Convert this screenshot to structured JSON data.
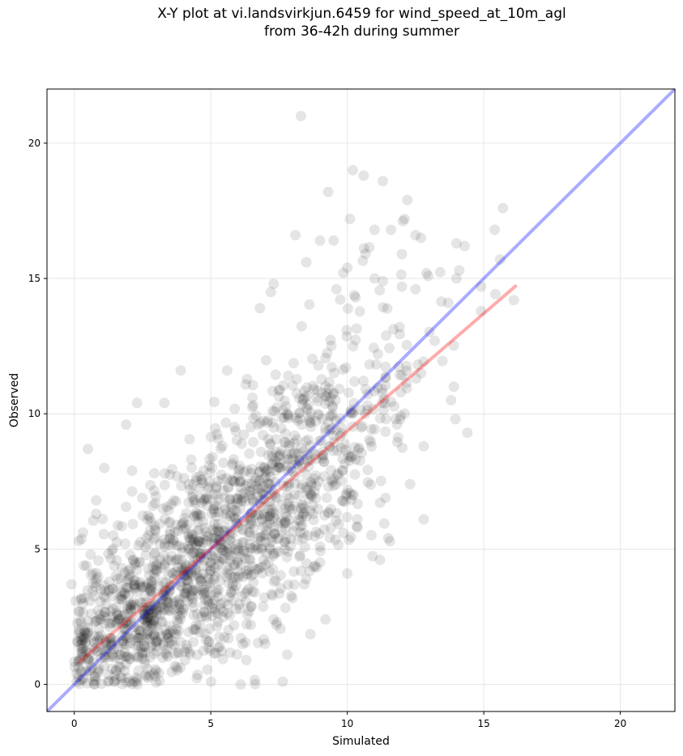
{
  "chart_data": {
    "type": "scatter",
    "title_lines": [
      "X-Y plot at vi.landsvirkjun.6459 for wind_speed_at_10m_agl",
      "from 36-42h during summer"
    ],
    "xlabel": "Simulated",
    "ylabel": "Observed",
    "xlim": [
      -1,
      22
    ],
    "ylim": [
      -1,
      22
    ],
    "xticks": [
      0,
      5,
      10,
      15,
      20
    ],
    "yticks": [
      0,
      5,
      10,
      15,
      20
    ],
    "grid": true,
    "point_color": "#000000",
    "point_alpha": 0.1,
    "identity_line": {
      "color": "#0000ff",
      "from": [
        -1,
        -1
      ],
      "to": [
        22,
        22
      ]
    },
    "regression_line": {
      "color": "#ff0000",
      "from": [
        0.15,
        0.8
      ],
      "to": [
        16.2,
        14.75
      ]
    },
    "notable_points": [
      [
        8.3,
        21.0
      ],
      [
        10.2,
        19.0
      ],
      [
        10.6,
        18.8
      ],
      [
        11.3,
        18.6
      ],
      [
        9.3,
        18.2
      ],
      [
        12.2,
        17.9
      ],
      [
        15.7,
        17.6
      ],
      [
        10.1,
        17.2
      ],
      [
        12.1,
        17.2
      ],
      [
        15.4,
        16.8
      ],
      [
        11.0,
        16.8
      ],
      [
        11.6,
        16.8
      ],
      [
        8.1,
        16.6
      ],
      [
        12.5,
        16.6
      ],
      [
        9.0,
        16.4
      ],
      [
        9.5,
        16.4
      ],
      [
        14.0,
        16.3
      ],
      [
        14.3,
        16.2
      ],
      [
        12.7,
        16.5
      ],
      [
        12.0,
        15.9
      ],
      [
        15.6,
        15.7
      ],
      [
        8.5,
        15.6
      ],
      [
        10.0,
        15.4
      ],
      [
        14.1,
        15.3
      ],
      [
        12.9,
        15.2
      ],
      [
        11.0,
        15.0
      ],
      [
        14.0,
        15.0
      ],
      [
        11.3,
        14.9
      ],
      [
        7.3,
        14.8
      ],
      [
        12.0,
        14.7
      ],
      [
        12.5,
        14.6
      ],
      [
        14.9,
        14.7
      ],
      [
        7.2,
        14.5
      ],
      [
        9.6,
        14.6
      ],
      [
        10.3,
        14.3
      ],
      [
        13.7,
        14.1
      ],
      [
        0.5,
        8.7
      ],
      [
        1.1,
        8.0
      ],
      [
        2.3,
        10.4
      ],
      [
        1.9,
        9.6
      ],
      [
        3.3,
        10.4
      ],
      [
        3.9,
        11.6
      ],
      [
        5.6,
        11.6
      ],
      [
        6.8,
        13.9
      ],
      [
        14.4,
        9.3
      ],
      [
        12.8,
        6.1
      ],
      [
        13.9,
        11.0
      ],
      [
        13.8,
        10.5
      ],
      [
        16.1,
        14.2
      ],
      [
        14.9,
        13.8
      ],
      [
        9.2,
        2.4
      ],
      [
        11.2,
        4.6
      ],
      [
        10.0,
        4.1
      ],
      [
        7.8,
        1.1
      ],
      [
        6.1,
        0.0
      ],
      [
        6.3,
        0.9
      ],
      [
        -0.1,
        3.7
      ],
      [
        0.2,
        2.7
      ],
      [
        0.6,
        4.8
      ],
      [
        0.8,
        6.8
      ],
      [
        0.8,
        6.3
      ],
      [
        11.5,
        5.4
      ],
      [
        12.3,
        7.4
      ],
      [
        12.8,
        8.8
      ],
      [
        7.4,
        2.2
      ]
    ],
    "clusters": [
      {
        "cx": 4.5,
        "cy": 4.2,
        "sx": 2.3,
        "sy": 2.2,
        "rho": 0.45,
        "n": 850
      },
      {
        "cx": 7.5,
        "cy": 7.8,
        "sx": 2.0,
        "sy": 2.2,
        "rho": 0.5,
        "n": 380
      },
      {
        "cx": 10.3,
        "cy": 10.4,
        "sx": 1.6,
        "sy": 2.4,
        "rho": 0.4,
        "n": 170
      },
      {
        "cx": 2.0,
        "cy": 2.0,
        "sx": 1.2,
        "sy": 1.3,
        "rho": 0.3,
        "n": 260
      }
    ]
  }
}
